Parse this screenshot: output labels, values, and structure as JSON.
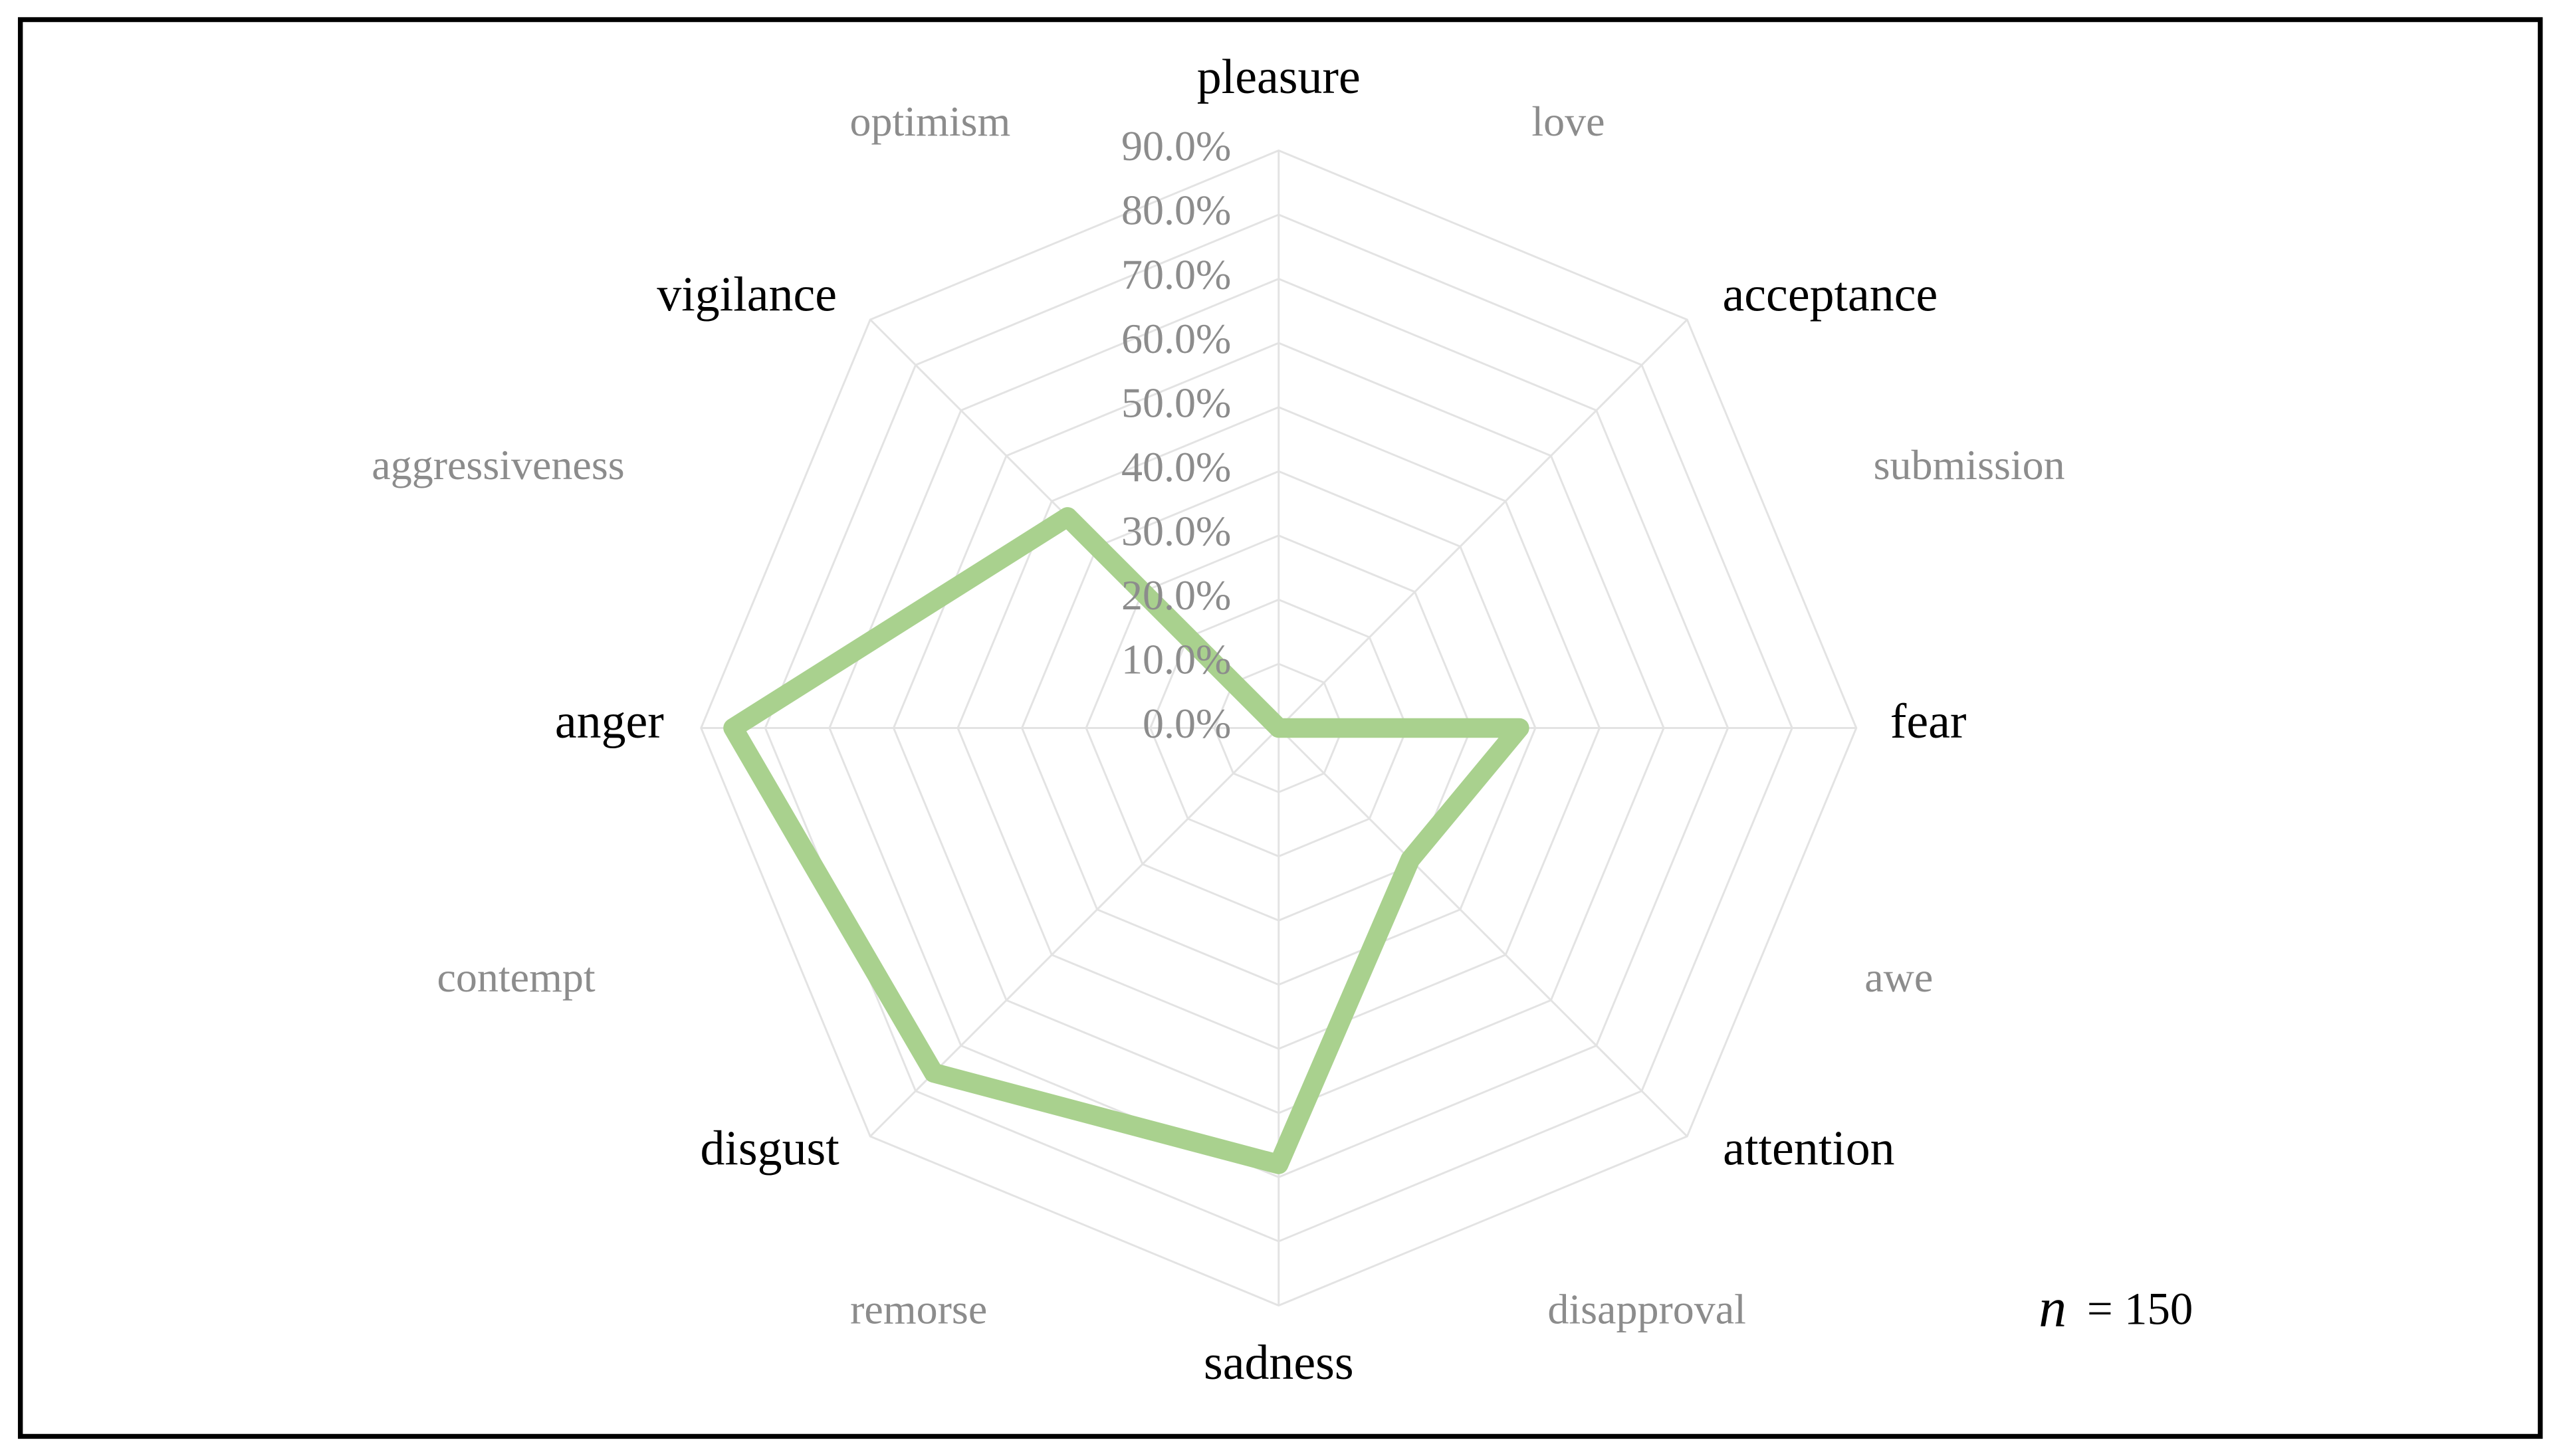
{
  "chart_data": {
    "type": "radar",
    "categories": [
      "pleasure",
      "acceptance",
      "fear",
      "attention",
      "sadness",
      "disgust",
      "anger",
      "vigilance"
    ],
    "values": [
      0,
      0,
      37.5,
      29,
      68,
      76,
      85,
      46.5
    ],
    "color": "#a9d18e",
    "rlim": [
      0,
      90
    ],
    "rticks": [
      {
        "value": 0,
        "label": "0.0%"
      },
      {
        "value": 10,
        "label": "10.0%"
      },
      {
        "value": 20,
        "label": "20.0%"
      },
      {
        "value": 30,
        "label": "30.0%"
      },
      {
        "value": 40,
        "label": "40.0%"
      },
      {
        "value": 50,
        "label": "50.0%"
      },
      {
        "value": 60,
        "label": "60.0%"
      },
      {
        "value": 70,
        "label": "70.0%"
      },
      {
        "value": 80,
        "label": "80.0%"
      },
      {
        "value": 90,
        "label": "90.0%"
      }
    ],
    "grid": true,
    "secondary_labels": [
      "optimism",
      "love",
      "submission",
      "awe",
      "disapproval",
      "remorse",
      "contempt",
      "aggressiveness"
    ],
    "annotation": {
      "symbol": "n",
      "text": "= 150"
    }
  }
}
